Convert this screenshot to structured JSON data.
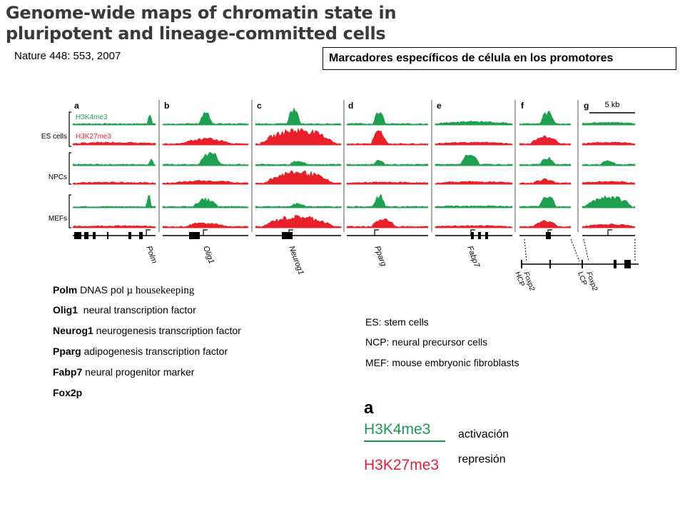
{
  "title": "Genome-wide maps of chromatin state in pluripotent and lineage-committed cells",
  "citation": "Nature 448: 553, 2007",
  "marker_box": "Marcadores específicos de célula en los promotores",
  "figure": {
    "panels": [
      "a",
      "b",
      "c",
      "d",
      "e",
      "f",
      "g"
    ],
    "scale_bar": "5 kb",
    "track_labels": [
      "H3K4me3",
      "H3K27me3"
    ],
    "cell_groups": [
      "ES cells",
      "NPCs",
      "MEFs"
    ],
    "genes": [
      "Polm",
      "Olig1",
      "Neurog1",
      "Pparg",
      "Fabp7"
    ],
    "foxp2_labels": [
      "Foxp2\nHCP",
      "Foxp2\nLCP"
    ],
    "colors": {
      "green": "#1ea050",
      "red": "#e8202a"
    }
  },
  "gene_list": [
    {
      "name": "Polm",
      "desc": " DNAS pol ",
      "desc2": "µ housekeeping"
    },
    {
      "name": "Olig1",
      "desc": "  neural transcription factor"
    },
    {
      "name": "Neurog1",
      "desc": " neurogenesis transcription factor"
    },
    {
      "name": "Pparg",
      "desc": " adipogenesis transcription factor"
    },
    {
      "name": "Fabp7",
      "desc": " neural progenitor marker"
    },
    {
      "name": "Fox2p",
      "desc": ""
    }
  ],
  "abbreviations": [
    "ES: stem cells",
    "NCP: neural precursor cells",
    "MEF: mouse embryonic fibroblasts"
  ],
  "legend": {
    "panel": "a",
    "k4": "H3K4me3",
    "k27": "H3K27me3",
    "activation": "activación",
    "repression": "represión"
  }
}
